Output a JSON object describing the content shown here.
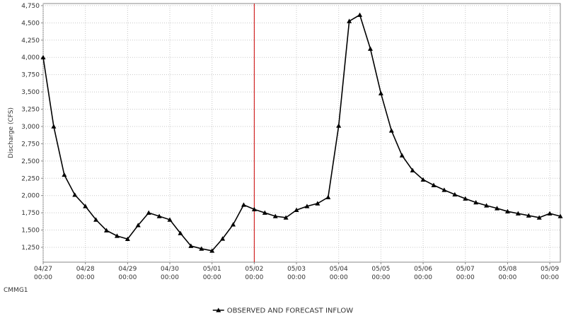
{
  "chart_data": {
    "type": "line",
    "station": "CMMG1",
    "ylabel": "Discharge (CFS)",
    "x": [
      "04/27 00:00",
      "04/27 06:00",
      "04/27 12:00",
      "04/27 18:00",
      "04/28 00:00",
      "04/28 06:00",
      "04/28 12:00",
      "04/28 18:00",
      "04/29 00:00",
      "04/29 06:00",
      "04/29 12:00",
      "04/29 18:00",
      "04/30 00:00",
      "04/30 06:00",
      "04/30 12:00",
      "04/30 18:00",
      "05/01 00:00",
      "05/01 06:00",
      "05/01 12:00",
      "05/01 18:00",
      "05/02 00:00",
      "05/02 06:00",
      "05/02 12:00",
      "05/02 18:00",
      "05/03 00:00",
      "05/03 06:00",
      "05/03 12:00",
      "05/03 18:00",
      "05/04 00:00",
      "05/04 06:00",
      "05/04 12:00",
      "05/04 18:00",
      "05/05 00:00",
      "05/05 06:00",
      "05/05 12:00",
      "05/05 18:00",
      "05/06 00:00",
      "05/06 06:00",
      "05/06 12:00",
      "05/06 18:00",
      "05/07 00:00",
      "05/07 06:00",
      "05/07 12:00",
      "05/07 18:00",
      "05/08 00:00",
      "05/08 06:00",
      "05/08 12:00",
      "05/08 18:00",
      "05/09 00:00",
      "05/09 06:00"
    ],
    "series": [
      {
        "name": "OBSERVED AND FORECAST INFLOW",
        "color": "#000000",
        "values": [
          4000,
          3000,
          2300,
          2010,
          1845,
          1650,
          1495,
          1415,
          1370,
          1570,
          1750,
          1700,
          1650,
          1455,
          1270,
          1230,
          1200,
          1375,
          1580,
          1865,
          1800,
          1750,
          1700,
          1680,
          1790,
          1845,
          1885,
          1975,
          3010,
          4525,
          4615,
          4125,
          3480,
          2940,
          2580,
          2365,
          2230,
          2150,
          2080,
          2015,
          1955,
          1900,
          1855,
          1815,
          1770,
          1740,
          1710,
          1680,
          1740,
          1700
        ]
      }
    ],
    "xlim": [
      "04/27 00:00",
      "05/09 06:00"
    ],
    "xticks": [
      {
        "value": "04/27 00:00",
        "label": [
          "04/27",
          "00:00"
        ]
      },
      {
        "value": "04/28 00:00",
        "label": [
          "04/28",
          "00:00"
        ]
      },
      {
        "value": "04/29 00:00",
        "label": [
          "04/29",
          "00:00"
        ]
      },
      {
        "value": "04/30 00:00",
        "label": [
          "04/30",
          "00:00"
        ]
      },
      {
        "value": "05/01 00:00",
        "label": [
          "05/01",
          "00:00"
        ]
      },
      {
        "value": "05/02 00:00",
        "label": [
          "05/02",
          "00:00"
        ]
      },
      {
        "value": "05/03 00:00",
        "label": [
          "05/03",
          "00:00"
        ]
      },
      {
        "value": "05/04 00:00",
        "label": [
          "05/04",
          "00:00"
        ]
      },
      {
        "value": "05/05 00:00",
        "label": [
          "05/05",
          "00:00"
        ]
      },
      {
        "value": "05/06 00:00",
        "label": [
          "05/06",
          "00:00"
        ]
      },
      {
        "value": "05/07 00:00",
        "label": [
          "05/07",
          "00:00"
        ]
      },
      {
        "value": "05/08 00:00",
        "label": [
          "05/08",
          "00:00"
        ]
      },
      {
        "value": "05/09 00:00",
        "label": [
          "05/09",
          "00:00"
        ]
      }
    ],
    "ylim": [
      1035,
      4780
    ],
    "yticks": [
      {
        "value": 1250,
        "label": "1,250"
      },
      {
        "value": 1500,
        "label": "1,500"
      },
      {
        "value": 1750,
        "label": "1,750"
      },
      {
        "value": 2000,
        "label": "2,000"
      },
      {
        "value": 2250,
        "label": "2,250"
      },
      {
        "value": 2500,
        "label": "2,500"
      },
      {
        "value": 2750,
        "label": "2,750"
      },
      {
        "value": 3000,
        "label": "3,000"
      },
      {
        "value": 3250,
        "label": "3,250"
      },
      {
        "value": 3500,
        "label": "3,500"
      },
      {
        "value": 3750,
        "label": "3,750"
      },
      {
        "value": 4000,
        "label": "4,000"
      },
      {
        "value": 4250,
        "label": "4,250"
      },
      {
        "value": 4500,
        "label": "4,500"
      },
      {
        "value": 4750,
        "label": "4,750"
      }
    ],
    "grid": true,
    "legend": "bottom",
    "now_line": {
      "x": "05/02 00:00",
      "color": "#cc0000"
    }
  }
}
